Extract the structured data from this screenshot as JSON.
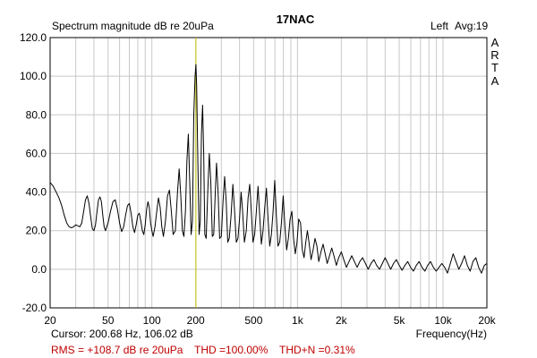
{
  "chart_data": {
    "type": "line",
    "title": "17NAC",
    "ylabel": "Spectrum magnitude dB re 20uPa",
    "xlabel": "Frequency(Hz)",
    "channel": "Left",
    "averaging": "Avg:19",
    "brand_letters": [
      "A",
      "R",
      "T",
      "A"
    ],
    "x_scale": "log",
    "xlim": [
      20,
      20000
    ],
    "ylim": [
      -20,
      120
    ],
    "y_ticks": [
      120,
      100,
      80,
      60,
      40,
      20,
      0,
      -20
    ],
    "y_tick_labels": [
      "120.0",
      "100.0",
      "80.0",
      "60.0",
      "40.0",
      "20.0",
      "0.0",
      "-20.0"
    ],
    "x_ticks": [
      20,
      50,
      100,
      200,
      500,
      1000,
      2000,
      5000,
      10000,
      20000
    ],
    "x_tick_labels": [
      "20",
      "50",
      "100",
      "200",
      "500",
      "1k",
      "2k",
      "5k",
      "10k",
      "20k"
    ],
    "grid": true,
    "cursor": {
      "frequency": 200.68,
      "level": 106.02,
      "readout": "Cursor: 200.68 Hz, 106.02 dB",
      "color": "#c8c800"
    },
    "stats": {
      "rms": "RMS = +108.7 dB re 20uPa",
      "thd": "THD =100.00%",
      "thdn": "THD+N =0.31%"
    },
    "series": [
      {
        "color": "#000000",
        "points": [
          [
            20,
            45
          ],
          [
            21,
            43
          ],
          [
            22,
            40
          ],
          [
            23,
            37
          ],
          [
            24,
            33
          ],
          [
            25,
            28
          ],
          [
            26,
            24
          ],
          [
            27,
            22
          ],
          [
            28,
            21.5
          ],
          [
            29,
            22
          ],
          [
            30,
            23
          ],
          [
            31,
            22.5
          ],
          [
            32,
            22
          ],
          [
            33,
            24
          ],
          [
            34,
            30
          ],
          [
            35,
            36
          ],
          [
            36,
            38
          ],
          [
            37,
            34
          ],
          [
            38,
            27
          ],
          [
            39,
            21
          ],
          [
            40,
            20
          ],
          [
            41,
            23
          ],
          [
            42,
            30
          ],
          [
            43,
            36
          ],
          [
            44,
            37.5
          ],
          [
            45,
            35
          ],
          [
            46,
            28
          ],
          [
            47,
            22
          ],
          [
            48,
            20
          ],
          [
            50,
            24
          ],
          [
            52,
            30
          ],
          [
            54,
            35
          ],
          [
            56,
            36
          ],
          [
            58,
            31
          ],
          [
            60,
            24
          ],
          [
            62,
            19.5
          ],
          [
            64,
            22
          ],
          [
            66,
            28
          ],
          [
            68,
            33
          ],
          [
            70,
            34
          ],
          [
            72,
            29
          ],
          [
            74,
            22
          ],
          [
            76,
            19
          ],
          [
            78,
            23
          ],
          [
            80,
            28
          ],
          [
            82,
            29
          ],
          [
            84,
            25
          ],
          [
            86,
            20
          ],
          [
            88,
            18
          ],
          [
            90,
            23
          ],
          [
            92,
            31
          ],
          [
            94,
            35
          ],
          [
            96,
            32
          ],
          [
            98,
            24
          ],
          [
            100,
            20
          ],
          [
            102,
            17
          ],
          [
            105,
            22
          ],
          [
            108,
            30
          ],
          [
            111,
            37
          ],
          [
            114,
            32
          ],
          [
            117,
            22
          ],
          [
            120,
            17
          ],
          [
            124,
            25
          ],
          [
            128,
            38
          ],
          [
            132,
            41
          ],
          [
            136,
            30
          ],
          [
            140,
            18
          ],
          [
            145,
            20
          ],
          [
            150,
            40
          ],
          [
            154,
            52
          ],
          [
            158,
            38
          ],
          [
            162,
            20
          ],
          [
            166,
            17
          ],
          [
            170,
            30
          ],
          [
            174,
            56
          ],
          [
            178,
            70
          ],
          [
            182,
            45
          ],
          [
            186,
            18
          ],
          [
            190,
            25
          ],
          [
            194,
            80
          ],
          [
            198,
            100
          ],
          [
            200.68,
            106.02
          ],
          [
            203,
            95
          ],
          [
            207,
            55
          ],
          [
            211,
            18
          ],
          [
            215,
            25
          ],
          [
            219,
            70
          ],
          [
            223,
            85
          ],
          [
            227,
            60
          ],
          [
            231,
            18
          ],
          [
            236,
            16
          ],
          [
            242,
            40
          ],
          [
            248,
            60
          ],
          [
            254,
            45
          ],
          [
            260,
            17
          ],
          [
            266,
            18
          ],
          [
            272,
            38
          ],
          [
            278,
            55
          ],
          [
            285,
            40
          ],
          [
            292,
            16
          ],
          [
            300,
            17
          ],
          [
            308,
            35
          ],
          [
            316,
            48
          ],
          [
            324,
            35
          ],
          [
            332,
            14
          ],
          [
            340,
            16
          ],
          [
            350,
            28
          ],
          [
            360,
            44
          ],
          [
            370,
            30
          ],
          [
            380,
            14
          ],
          [
            390,
            16
          ],
          [
            400,
            26
          ],
          [
            410,
            40
          ],
          [
            420,
            30
          ],
          [
            432,
            14
          ],
          [
            445,
            20
          ],
          [
            458,
            37
          ],
          [
            470,
            44
          ],
          [
            482,
            30
          ],
          [
            495,
            14
          ],
          [
            508,
            18
          ],
          [
            522,
            30
          ],
          [
            536,
            43
          ],
          [
            550,
            28
          ],
          [
            565,
            13
          ],
          [
            580,
            20
          ],
          [
            596,
            32
          ],
          [
            612,
            42
          ],
          [
            628,
            26
          ],
          [
            645,
            12
          ],
          [
            662,
            18
          ],
          [
            680,
            30
          ],
          [
            698,
            46
          ],
          [
            716,
            28
          ],
          [
            735,
            12
          ],
          [
            755,
            14
          ],
          [
            776,
            24
          ],
          [
            798,
            38
          ],
          [
            820,
            22
          ],
          [
            843,
            10
          ],
          [
            866,
            16
          ],
          [
            890,
            26
          ],
          [
            915,
            30
          ],
          [
            940,
            16
          ],
          [
            966,
            8
          ],
          [
            993,
            14
          ],
          [
            1020,
            26
          ],
          [
            1050,
            24
          ],
          [
            1080,
            10
          ],
          [
            1110,
            6
          ],
          [
            1140,
            14
          ],
          [
            1170,
            20
          ],
          [
            1200,
            14
          ],
          [
            1240,
            5
          ],
          [
            1280,
            10
          ],
          [
            1320,
            16
          ],
          [
            1360,
            12
          ],
          [
            1400,
            4
          ],
          [
            1450,
            9
          ],
          [
            1500,
            13
          ],
          [
            1550,
            8
          ],
          [
            1600,
            3
          ],
          [
            1660,
            7
          ],
          [
            1720,
            11
          ],
          [
            1780,
            7
          ],
          [
            1850,
            2
          ],
          [
            1920,
            6
          ],
          [
            2000,
            9
          ],
          [
            2080,
            5
          ],
          [
            2170,
            1
          ],
          [
            2260,
            4
          ],
          [
            2360,
            7
          ],
          [
            2460,
            4
          ],
          [
            2570,
            1
          ],
          [
            2680,
            4
          ],
          [
            2800,
            6
          ],
          [
            2930,
            3
          ],
          [
            3060,
            0
          ],
          [
            3200,
            3
          ],
          [
            3350,
            5
          ],
          [
            3500,
            2
          ],
          [
            3660,
            0
          ],
          [
            3830,
            3
          ],
          [
            4000,
            6
          ],
          [
            4180,
            3
          ],
          [
            4370,
            0
          ],
          [
            4570,
            3
          ],
          [
            4780,
            5
          ],
          [
            5000,
            2
          ],
          [
            5230,
            -0.5
          ],
          [
            5470,
            2
          ],
          [
            5720,
            4
          ],
          [
            5980,
            1
          ],
          [
            6260,
            -1
          ],
          [
            6550,
            2
          ],
          [
            6850,
            4
          ],
          [
            7170,
            1
          ],
          [
            7500,
            -1
          ],
          [
            7840,
            2
          ],
          [
            8200,
            4
          ],
          [
            8580,
            1
          ],
          [
            8970,
            -1
          ],
          [
            9380,
            1
          ],
          [
            9810,
            3
          ],
          [
            10260,
            1
          ],
          [
            10730,
            -2
          ],
          [
            11220,
            3
          ],
          [
            11730,
            8
          ],
          [
            12270,
            4
          ],
          [
            12830,
            0
          ],
          [
            13420,
            3
          ],
          [
            14040,
            7
          ],
          [
            14680,
            2
          ],
          [
            15350,
            -1
          ],
          [
            16050,
            4
          ],
          [
            16790,
            6
          ],
          [
            17560,
            1
          ],
          [
            18360,
            -2
          ],
          [
            19200,
            2
          ],
          [
            20000,
            3
          ]
        ]
      }
    ]
  }
}
